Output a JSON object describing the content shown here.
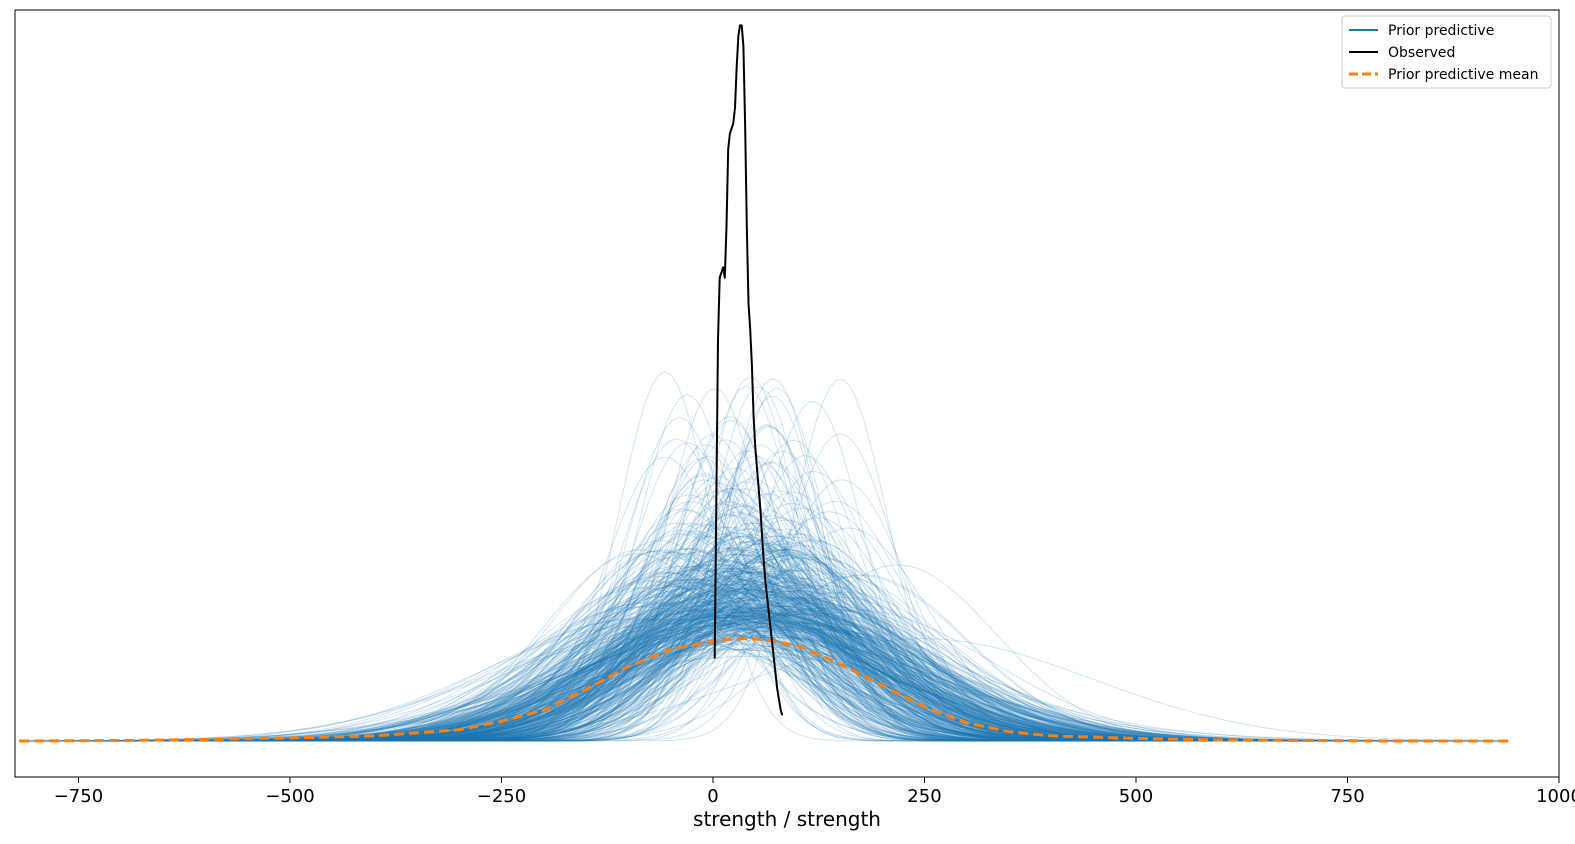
{
  "chart_data": {
    "type": "line",
    "title": "",
    "xlabel": "strength / strength",
    "ylabel": "",
    "xlim": [
      -825,
      1000
    ],
    "ylim": [
      0,
      0.0142
    ],
    "xticks": [
      -750,
      -500,
      -250,
      0,
      250,
      500,
      750,
      1000
    ],
    "xtick_labels": [
      "−750",
      "−500",
      "−250",
      "0",
      "250",
      "500",
      "750",
      "1000"
    ],
    "yticks_shown": false,
    "grid": false,
    "legend_position": "top-right",
    "legend": [
      {
        "label": "Prior predictive",
        "color": "#1f77b4",
        "style": "solid"
      },
      {
        "label": "Observed",
        "color": "#000000",
        "style": "solid"
      },
      {
        "label": "Prior predictive mean",
        "color": "#ff7f0e",
        "style": "dashed"
      }
    ],
    "series": [
      {
        "name": "Prior predictive",
        "kind": "ensemble",
        "color": "#1f77b4",
        "count": 500,
        "center_mean": 38,
        "center_sd": 55,
        "spread_mean": 130,
        "spread_sd": 35,
        "x_range": [
          -820,
          940
        ]
      },
      {
        "name": "Observed",
        "color": "#000000",
        "x": [
          2,
          4,
          6,
          8,
          10,
          12,
          14,
          16,
          18,
          20,
          22,
          24,
          26,
          28,
          30,
          32,
          34,
          36,
          38,
          40,
          42,
          44,
          46,
          48,
          50,
          52,
          54,
          56,
          58,
          60,
          62,
          64,
          66,
          68,
          70,
          72,
          74,
          76,
          78,
          80,
          82
        ],
        "y": [
          0.0016,
          0.0048,
          0.0078,
          0.009,
          0.0091,
          0.0092,
          0.009,
          0.01,
          0.0115,
          0.0118,
          0.0119,
          0.012,
          0.0123,
          0.0131,
          0.0137,
          0.0139,
          0.0139,
          0.0135,
          0.012,
          0.01,
          0.0085,
          0.008,
          0.0073,
          0.0063,
          0.0057,
          0.0053,
          0.0049,
          0.0045,
          0.004,
          0.0035,
          0.0031,
          0.0028,
          0.0025,
          0.0022,
          0.0019,
          0.0016,
          0.0013,
          0.001,
          0.0008,
          0.0006,
          0.0005
        ]
      },
      {
        "name": "Prior predictive mean",
        "color": "#ff7f0e",
        "x": [
          -820,
          -700,
          -600,
          -500,
          -400,
          -300,
          -250,
          -200,
          -150,
          -100,
          -50,
          0,
          20,
          40,
          60,
          100,
          150,
          200,
          250,
          300,
          350,
          400,
          500,
          600,
          700,
          800,
          940
        ],
        "y": [
          0.0,
          1e-05,
          3e-05,
          6e-05,
          0.0001,
          0.00022,
          0.00038,
          0.0006,
          0.001,
          0.00145,
          0.00178,
          0.00194,
          0.00198,
          0.00199,
          0.00197,
          0.00185,
          0.0015,
          0.00108,
          0.00066,
          0.00035,
          0.00018,
          0.0001,
          5e-05,
          2e-05,
          1e-05,
          0.0,
          0.0
        ]
      }
    ]
  }
}
